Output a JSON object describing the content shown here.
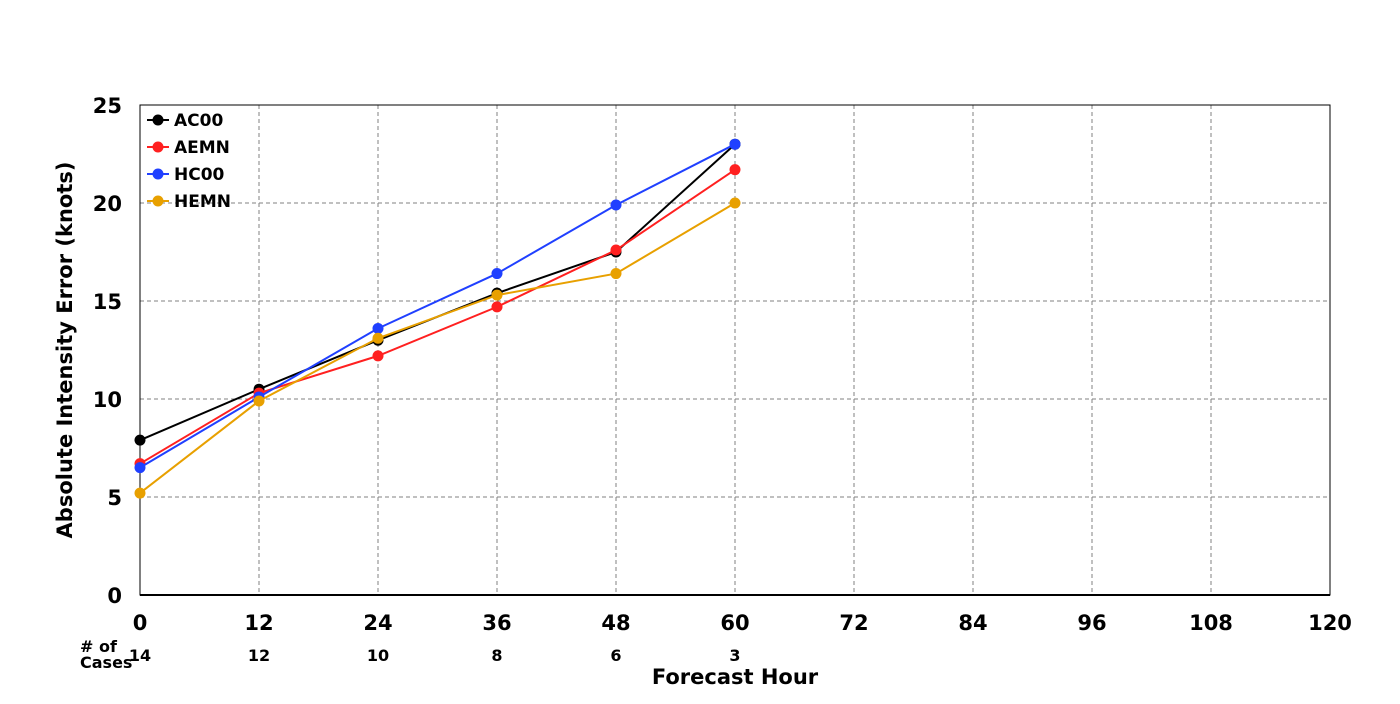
{
  "chart_data": {
    "type": "line",
    "title": "",
    "xlabel": "Forecast Hour",
    "ylabel": "Absolute Intensity Error (knots)",
    "x_ticks": [
      0,
      12,
      24,
      36,
      48,
      60,
      72,
      84,
      96,
      108,
      120
    ],
    "y_ticks": [
      0,
      5,
      10,
      15,
      20,
      25
    ],
    "xlim": [
      0,
      120
    ],
    "ylim": [
      0,
      25
    ],
    "grid": true,
    "legend_position": "top-left",
    "cases_label": "# of Cases",
    "cases_label_line1": "# of",
    "cases_label_line2": "Cases",
    "cases": [
      {
        "x": 0,
        "label": "14"
      },
      {
        "x": 12,
        "label": "12"
      },
      {
        "x": 24,
        "label": "10"
      },
      {
        "x": 36,
        "label": "8"
      },
      {
        "x": 48,
        "label": "6"
      },
      {
        "x": 60,
        "label": "3"
      }
    ],
    "x": [
      0,
      12,
      24,
      36,
      48,
      60
    ],
    "series": [
      {
        "name": "AC00",
        "color": "#000000",
        "values": [
          7.9,
          10.5,
          13.0,
          15.4,
          17.5,
          23.0
        ]
      },
      {
        "name": "AEMN",
        "color": "#ff2020",
        "values": [
          6.7,
          10.3,
          12.2,
          14.7,
          17.6,
          21.7
        ]
      },
      {
        "name": "HC00",
        "color": "#2040ff",
        "values": [
          6.5,
          10.1,
          13.6,
          16.4,
          19.9,
          23.0
        ]
      },
      {
        "name": "HEMN",
        "color": "#e8a000",
        "values": [
          5.2,
          9.9,
          13.1,
          15.3,
          16.4,
          20.0
        ]
      }
    ]
  }
}
